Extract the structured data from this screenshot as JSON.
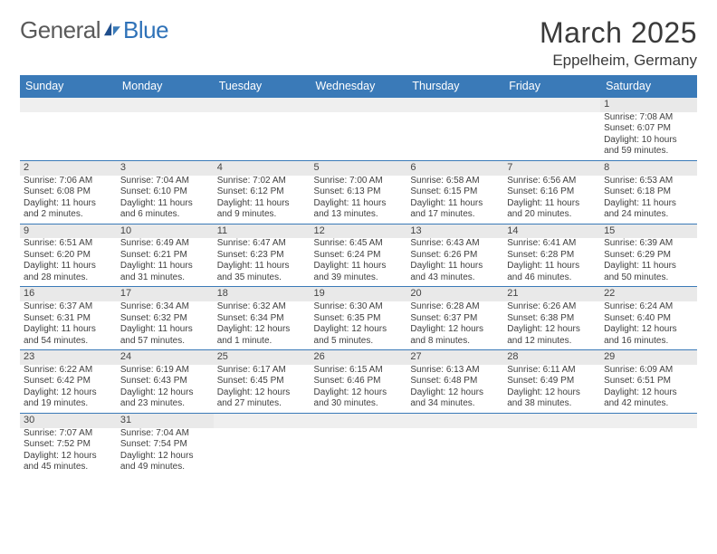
{
  "logo": {
    "general": "General",
    "blue": "Blue"
  },
  "title": {
    "month": "March 2025",
    "location": "Eppelheim, Germany"
  },
  "colors": {
    "header_bg": "#3a7ab8",
    "header_text": "#ffffff",
    "daynum_bg": "#e9e9e9",
    "border": "#3a7ab8",
    "body_bg": "#ffffff",
    "text": "#3f3f3f",
    "logo_gray": "#5a5a5a",
    "logo_blue": "#2f72b8"
  },
  "weekdays": [
    "Sunday",
    "Monday",
    "Tuesday",
    "Wednesday",
    "Thursday",
    "Friday",
    "Saturday"
  ],
  "weeks": [
    [
      null,
      null,
      null,
      null,
      null,
      null,
      {
        "d": "1",
        "r": "7:08 AM",
        "s": "6:07 PM",
        "dl": "10 hours and 59 minutes."
      }
    ],
    [
      {
        "d": "2",
        "r": "7:06 AM",
        "s": "6:08 PM",
        "dl": "11 hours and 2 minutes."
      },
      {
        "d": "3",
        "r": "7:04 AM",
        "s": "6:10 PM",
        "dl": "11 hours and 6 minutes."
      },
      {
        "d": "4",
        "r": "7:02 AM",
        "s": "6:12 PM",
        "dl": "11 hours and 9 minutes."
      },
      {
        "d": "5",
        "r": "7:00 AM",
        "s": "6:13 PM",
        "dl": "11 hours and 13 minutes."
      },
      {
        "d": "6",
        "r": "6:58 AM",
        "s": "6:15 PM",
        "dl": "11 hours and 17 minutes."
      },
      {
        "d": "7",
        "r": "6:56 AM",
        "s": "6:16 PM",
        "dl": "11 hours and 20 minutes."
      },
      {
        "d": "8",
        "r": "6:53 AM",
        "s": "6:18 PM",
        "dl": "11 hours and 24 minutes."
      }
    ],
    [
      {
        "d": "9",
        "r": "6:51 AM",
        "s": "6:20 PM",
        "dl": "11 hours and 28 minutes."
      },
      {
        "d": "10",
        "r": "6:49 AM",
        "s": "6:21 PM",
        "dl": "11 hours and 31 minutes."
      },
      {
        "d": "11",
        "r": "6:47 AM",
        "s": "6:23 PM",
        "dl": "11 hours and 35 minutes."
      },
      {
        "d": "12",
        "r": "6:45 AM",
        "s": "6:24 PM",
        "dl": "11 hours and 39 minutes."
      },
      {
        "d": "13",
        "r": "6:43 AM",
        "s": "6:26 PM",
        "dl": "11 hours and 43 minutes."
      },
      {
        "d": "14",
        "r": "6:41 AM",
        "s": "6:28 PM",
        "dl": "11 hours and 46 minutes."
      },
      {
        "d": "15",
        "r": "6:39 AM",
        "s": "6:29 PM",
        "dl": "11 hours and 50 minutes."
      }
    ],
    [
      {
        "d": "16",
        "r": "6:37 AM",
        "s": "6:31 PM",
        "dl": "11 hours and 54 minutes."
      },
      {
        "d": "17",
        "r": "6:34 AM",
        "s": "6:32 PM",
        "dl": "11 hours and 57 minutes."
      },
      {
        "d": "18",
        "r": "6:32 AM",
        "s": "6:34 PM",
        "dl": "12 hours and 1 minute."
      },
      {
        "d": "19",
        "r": "6:30 AM",
        "s": "6:35 PM",
        "dl": "12 hours and 5 minutes."
      },
      {
        "d": "20",
        "r": "6:28 AM",
        "s": "6:37 PM",
        "dl": "12 hours and 8 minutes."
      },
      {
        "d": "21",
        "r": "6:26 AM",
        "s": "6:38 PM",
        "dl": "12 hours and 12 minutes."
      },
      {
        "d": "22",
        "r": "6:24 AM",
        "s": "6:40 PM",
        "dl": "12 hours and 16 minutes."
      }
    ],
    [
      {
        "d": "23",
        "r": "6:22 AM",
        "s": "6:42 PM",
        "dl": "12 hours and 19 minutes."
      },
      {
        "d": "24",
        "r": "6:19 AM",
        "s": "6:43 PM",
        "dl": "12 hours and 23 minutes."
      },
      {
        "d": "25",
        "r": "6:17 AM",
        "s": "6:45 PM",
        "dl": "12 hours and 27 minutes."
      },
      {
        "d": "26",
        "r": "6:15 AM",
        "s": "6:46 PM",
        "dl": "12 hours and 30 minutes."
      },
      {
        "d": "27",
        "r": "6:13 AM",
        "s": "6:48 PM",
        "dl": "12 hours and 34 minutes."
      },
      {
        "d": "28",
        "r": "6:11 AM",
        "s": "6:49 PM",
        "dl": "12 hours and 38 minutes."
      },
      {
        "d": "29",
        "r": "6:09 AM",
        "s": "6:51 PM",
        "dl": "12 hours and 42 minutes."
      }
    ],
    [
      {
        "d": "30",
        "r": "7:07 AM",
        "s": "7:52 PM",
        "dl": "12 hours and 45 minutes."
      },
      {
        "d": "31",
        "r": "7:04 AM",
        "s": "7:54 PM",
        "dl": "12 hours and 49 minutes."
      },
      null,
      null,
      null,
      null,
      null
    ]
  ],
  "labels": {
    "sunrise": "Sunrise: ",
    "sunset": "Sunset: ",
    "daylight": "Daylight: "
  }
}
